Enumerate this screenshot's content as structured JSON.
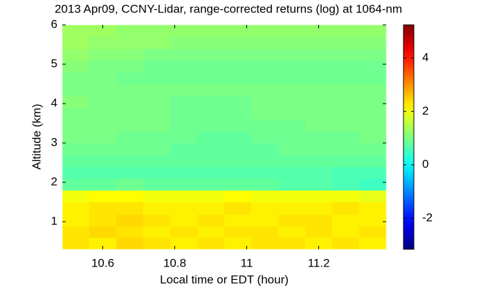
{
  "chart_data": {
    "type": "heatmap",
    "title": "2013 Apr09, CCNY-Lidar, range-corrected returns (log) at 1064-nm",
    "x_label": "Local time or EDT (hour)",
    "y_label": "Altitude (km)",
    "x": [
      10.525,
      10.6,
      10.675,
      10.75,
      10.825,
      10.9,
      10.975,
      11.05,
      11.125,
      11.2,
      11.275,
      11.35
    ],
    "y": [
      0.45,
      0.75,
      1.05,
      1.35,
      1.65,
      1.95,
      2.25,
      2.55,
      2.85,
      3.15,
      3.45,
      3.75,
      4.05,
      4.35,
      4.65,
      4.95,
      5.25,
      5.55,
      5.85
    ],
    "z": [
      [
        2.3,
        2.2,
        2.4,
        2.3,
        2.2,
        2.3,
        2.2,
        2.3,
        2.3,
        2.2,
        2.3,
        2.2
      ],
      [
        2.3,
        2.4,
        2.3,
        2.2,
        2.3,
        2.2,
        2.3,
        2.3,
        2.2,
        2.3,
        2.2,
        2.3
      ],
      [
        2.2,
        2.3,
        2.4,
        2.3,
        2.2,
        2.3,
        2.2,
        2.2,
        2.3,
        2.3,
        2.2,
        2.2
      ],
      [
        2.2,
        2.3,
        2.3,
        2.2,
        2.2,
        2.2,
        2.3,
        2.2,
        2.2,
        2.2,
        2.3,
        2.2
      ],
      [
        2.0,
        2.1,
        2.1,
        2.0,
        2.0,
        2.0,
        2.1,
        2.0,
        2.0,
        2.0,
        2.0,
        1.9
      ],
      [
        0.8,
        0.8,
        0.9,
        0.8,
        0.8,
        0.8,
        0.8,
        0.8,
        0.7,
        0.7,
        0.6,
        0.5
      ],
      [
        0.7,
        0.7,
        0.7,
        0.7,
        0.7,
        0.7,
        0.7,
        0.7,
        0.7,
        0.7,
        0.6,
        0.6
      ],
      [
        0.8,
        0.8,
        0.8,
        0.8,
        0.8,
        0.8,
        0.8,
        0.8,
        0.8,
        0.8,
        0.8,
        0.8
      ],
      [
        0.9,
        0.9,
        0.9,
        0.9,
        0.8,
        0.8,
        0.8,
        0.8,
        0.9,
        0.9,
        0.9,
        0.9
      ],
      [
        1.0,
        1.0,
        0.9,
        0.9,
        0.9,
        0.8,
        0.8,
        0.9,
        0.9,
        0.9,
        0.9,
        1.0
      ],
      [
        1.0,
        1.0,
        1.0,
        1.0,
        0.9,
        0.9,
        0.9,
        0.9,
        0.9,
        1.0,
        1.0,
        1.0
      ],
      [
        1.0,
        1.0,
        1.0,
        1.0,
        0.9,
        0.9,
        0.9,
        1.0,
        1.0,
        1.0,
        1.0,
        1.0
      ],
      [
        1.1,
        1.0,
        1.0,
        1.0,
        0.9,
        0.9,
        0.9,
        1.0,
        1.0,
        1.0,
        1.0,
        1.0
      ],
      [
        1.0,
        1.0,
        1.0,
        1.0,
        1.0,
        1.0,
        1.0,
        1.0,
        1.0,
        1.0,
        1.0,
        1.0
      ],
      [
        1.0,
        1.0,
        0.9,
        0.9,
        0.9,
        0.9,
        0.9,
        0.9,
        0.9,
        0.9,
        0.9,
        0.9
      ],
      [
        1.1,
        1.0,
        1.0,
        0.9,
        0.9,
        0.9,
        0.9,
        0.9,
        0.9,
        0.9,
        0.9,
        0.9
      ],
      [
        1.2,
        1.1,
        1.1,
        1.0,
        1.0,
        1.0,
        1.0,
        1.0,
        1.0,
        1.0,
        1.0,
        1.0
      ],
      [
        1.3,
        1.2,
        1.2,
        1.2,
        1.1,
        1.1,
        1.1,
        1.1,
        1.1,
        1.1,
        1.1,
        1.1
      ],
      [
        1.3,
        1.3,
        1.2,
        1.2,
        1.2,
        1.2,
        1.2,
        1.2,
        1.2,
        1.2,
        1.2,
        1.2
      ]
    ],
    "xlim": [
      10.4875,
      11.3875
    ],
    "xticks": [
      10.6,
      10.8,
      11,
      11.2
    ],
    "ylim": [
      0.3,
      6
    ],
    "yticks": [
      1,
      2,
      3,
      4,
      5,
      6
    ],
    "colormap": "jet",
    "clim": [
      -3.16,
      5.24
    ],
    "cticks": [
      -2,
      0,
      2,
      4
    ]
  }
}
